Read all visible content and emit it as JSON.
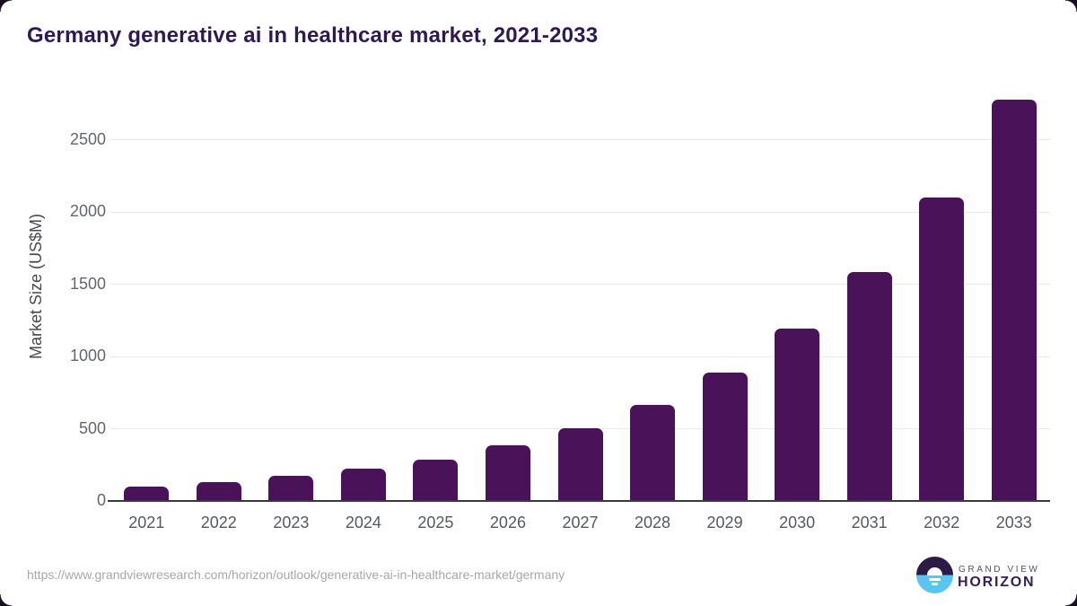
{
  "chart_data": {
    "type": "bar",
    "title": "Germany generative ai in healthcare market, 2021-2033",
    "ylabel": "Market Size (US$M)",
    "xlabel": "",
    "categories": [
      "2021",
      "2022",
      "2023",
      "2024",
      "2025",
      "2026",
      "2027",
      "2028",
      "2029",
      "2030",
      "2031",
      "2032",
      "2033"
    ],
    "values": [
      100,
      132,
      171,
      221,
      288,
      383,
      504,
      664,
      890,
      1190,
      1586,
      2100,
      2776
    ],
    "yticks": [
      0,
      500,
      1000,
      1500,
      2000,
      2500
    ],
    "ylim": [
      0,
      2850
    ],
    "grid": true,
    "legend": "none",
    "bar_color": "#4a1259"
  },
  "footer": {
    "source_url": "https://www.grandviewresearch.com/horizon/outlook/generative-ai-in-healthcare-market/germany",
    "logo": {
      "brand": "GRAND VIEW",
      "product": "HORIZON"
    }
  },
  "colors": {
    "title_text": "#2f1a4f",
    "bar": "#4a1259",
    "axis_line": "#3a393f",
    "gridline": "#e9e9ec",
    "tick_text": "#63666b",
    "url_text": "#a7a7a7",
    "logo_dark": "#2b1b45",
    "logo_blue": "#58c6f0"
  }
}
